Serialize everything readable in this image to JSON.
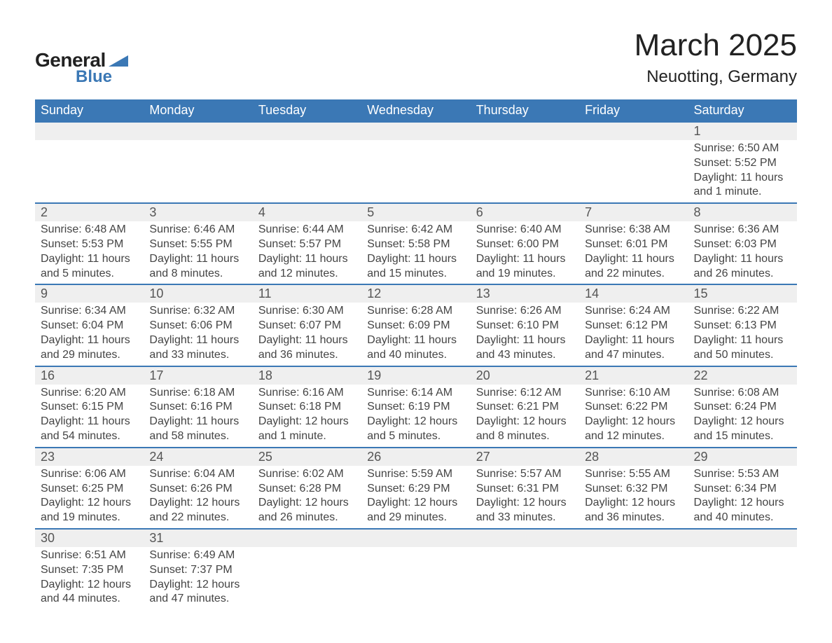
{
  "logo": {
    "general": "General",
    "blue": "Blue"
  },
  "title": "March 2025",
  "location": "Neuotting, Germany",
  "colors": {
    "header_bg": "#3b78b5",
    "header_text": "#ffffff",
    "daynum_bg": "#efefef",
    "row_divider": "#3b78b5",
    "text": "#444444"
  },
  "day_headers": [
    "Sunday",
    "Monday",
    "Tuesday",
    "Wednesday",
    "Thursday",
    "Friday",
    "Saturday"
  ],
  "weeks": [
    [
      null,
      null,
      null,
      null,
      null,
      null,
      {
        "n": "1",
        "sr": "Sunrise: 6:50 AM",
        "ss": "Sunset: 5:52 PM",
        "d1": "Daylight: 11 hours",
        "d2": "and 1 minute."
      }
    ],
    [
      {
        "n": "2",
        "sr": "Sunrise: 6:48 AM",
        "ss": "Sunset: 5:53 PM",
        "d1": "Daylight: 11 hours",
        "d2": "and 5 minutes."
      },
      {
        "n": "3",
        "sr": "Sunrise: 6:46 AM",
        "ss": "Sunset: 5:55 PM",
        "d1": "Daylight: 11 hours",
        "d2": "and 8 minutes."
      },
      {
        "n": "4",
        "sr": "Sunrise: 6:44 AM",
        "ss": "Sunset: 5:57 PM",
        "d1": "Daylight: 11 hours",
        "d2": "and 12 minutes."
      },
      {
        "n": "5",
        "sr": "Sunrise: 6:42 AM",
        "ss": "Sunset: 5:58 PM",
        "d1": "Daylight: 11 hours",
        "d2": "and 15 minutes."
      },
      {
        "n": "6",
        "sr": "Sunrise: 6:40 AM",
        "ss": "Sunset: 6:00 PM",
        "d1": "Daylight: 11 hours",
        "d2": "and 19 minutes."
      },
      {
        "n": "7",
        "sr": "Sunrise: 6:38 AM",
        "ss": "Sunset: 6:01 PM",
        "d1": "Daylight: 11 hours",
        "d2": "and 22 minutes."
      },
      {
        "n": "8",
        "sr": "Sunrise: 6:36 AM",
        "ss": "Sunset: 6:03 PM",
        "d1": "Daylight: 11 hours",
        "d2": "and 26 minutes."
      }
    ],
    [
      {
        "n": "9",
        "sr": "Sunrise: 6:34 AM",
        "ss": "Sunset: 6:04 PM",
        "d1": "Daylight: 11 hours",
        "d2": "and 29 minutes."
      },
      {
        "n": "10",
        "sr": "Sunrise: 6:32 AM",
        "ss": "Sunset: 6:06 PM",
        "d1": "Daylight: 11 hours",
        "d2": "and 33 minutes."
      },
      {
        "n": "11",
        "sr": "Sunrise: 6:30 AM",
        "ss": "Sunset: 6:07 PM",
        "d1": "Daylight: 11 hours",
        "d2": "and 36 minutes."
      },
      {
        "n": "12",
        "sr": "Sunrise: 6:28 AM",
        "ss": "Sunset: 6:09 PM",
        "d1": "Daylight: 11 hours",
        "d2": "and 40 minutes."
      },
      {
        "n": "13",
        "sr": "Sunrise: 6:26 AM",
        "ss": "Sunset: 6:10 PM",
        "d1": "Daylight: 11 hours",
        "d2": "and 43 minutes."
      },
      {
        "n": "14",
        "sr": "Sunrise: 6:24 AM",
        "ss": "Sunset: 6:12 PM",
        "d1": "Daylight: 11 hours",
        "d2": "and 47 minutes."
      },
      {
        "n": "15",
        "sr": "Sunrise: 6:22 AM",
        "ss": "Sunset: 6:13 PM",
        "d1": "Daylight: 11 hours",
        "d2": "and 50 minutes."
      }
    ],
    [
      {
        "n": "16",
        "sr": "Sunrise: 6:20 AM",
        "ss": "Sunset: 6:15 PM",
        "d1": "Daylight: 11 hours",
        "d2": "and 54 minutes."
      },
      {
        "n": "17",
        "sr": "Sunrise: 6:18 AM",
        "ss": "Sunset: 6:16 PM",
        "d1": "Daylight: 11 hours",
        "d2": "and 58 minutes."
      },
      {
        "n": "18",
        "sr": "Sunrise: 6:16 AM",
        "ss": "Sunset: 6:18 PM",
        "d1": "Daylight: 12 hours",
        "d2": "and 1 minute."
      },
      {
        "n": "19",
        "sr": "Sunrise: 6:14 AM",
        "ss": "Sunset: 6:19 PM",
        "d1": "Daylight: 12 hours",
        "d2": "and 5 minutes."
      },
      {
        "n": "20",
        "sr": "Sunrise: 6:12 AM",
        "ss": "Sunset: 6:21 PM",
        "d1": "Daylight: 12 hours",
        "d2": "and 8 minutes."
      },
      {
        "n": "21",
        "sr": "Sunrise: 6:10 AM",
        "ss": "Sunset: 6:22 PM",
        "d1": "Daylight: 12 hours",
        "d2": "and 12 minutes."
      },
      {
        "n": "22",
        "sr": "Sunrise: 6:08 AM",
        "ss": "Sunset: 6:24 PM",
        "d1": "Daylight: 12 hours",
        "d2": "and 15 minutes."
      }
    ],
    [
      {
        "n": "23",
        "sr": "Sunrise: 6:06 AM",
        "ss": "Sunset: 6:25 PM",
        "d1": "Daylight: 12 hours",
        "d2": "and 19 minutes."
      },
      {
        "n": "24",
        "sr": "Sunrise: 6:04 AM",
        "ss": "Sunset: 6:26 PM",
        "d1": "Daylight: 12 hours",
        "d2": "and 22 minutes."
      },
      {
        "n": "25",
        "sr": "Sunrise: 6:02 AM",
        "ss": "Sunset: 6:28 PM",
        "d1": "Daylight: 12 hours",
        "d2": "and 26 minutes."
      },
      {
        "n": "26",
        "sr": "Sunrise: 5:59 AM",
        "ss": "Sunset: 6:29 PM",
        "d1": "Daylight: 12 hours",
        "d2": "and 29 minutes."
      },
      {
        "n": "27",
        "sr": "Sunrise: 5:57 AM",
        "ss": "Sunset: 6:31 PM",
        "d1": "Daylight: 12 hours",
        "d2": "and 33 minutes."
      },
      {
        "n": "28",
        "sr": "Sunrise: 5:55 AM",
        "ss": "Sunset: 6:32 PM",
        "d1": "Daylight: 12 hours",
        "d2": "and 36 minutes."
      },
      {
        "n": "29",
        "sr": "Sunrise: 5:53 AM",
        "ss": "Sunset: 6:34 PM",
        "d1": "Daylight: 12 hours",
        "d2": "and 40 minutes."
      }
    ],
    [
      {
        "n": "30",
        "sr": "Sunrise: 6:51 AM",
        "ss": "Sunset: 7:35 PM",
        "d1": "Daylight: 12 hours",
        "d2": "and 44 minutes."
      },
      {
        "n": "31",
        "sr": "Sunrise: 6:49 AM",
        "ss": "Sunset: 7:37 PM",
        "d1": "Daylight: 12 hours",
        "d2": "and 47 minutes."
      },
      null,
      null,
      null,
      null,
      null
    ]
  ]
}
